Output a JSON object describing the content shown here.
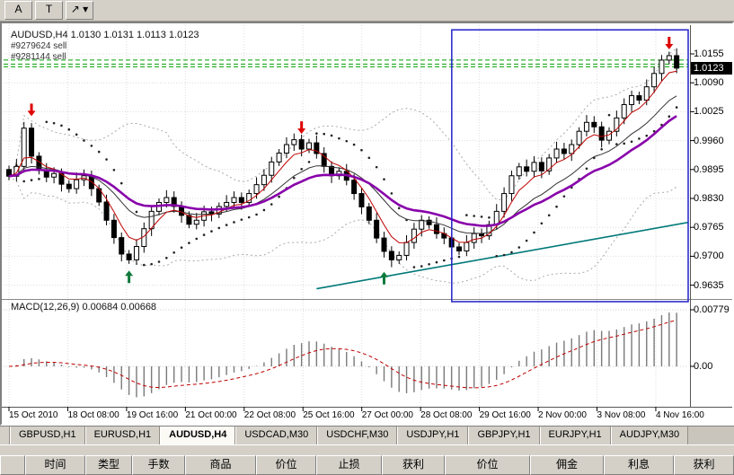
{
  "toolbar": {
    "buttons": [
      {
        "name": "cursor-tool-button",
        "label": "A"
      },
      {
        "name": "text-tool-button",
        "label": "T"
      },
      {
        "name": "line-studies-dropdown-button",
        "label": "↗ ▾"
      }
    ]
  },
  "chart": {
    "title": "AUDUSD,H4 1.0130 1.0131 1.0113 1.0123",
    "orders": [
      "#9279624 sell",
      "#9281144 sell"
    ],
    "order_line_prices": [
      1.0141,
      1.0132,
      1.0126
    ],
    "price_axis": {
      "labels": [
        "1.0155",
        "1.0090",
        "1.0025",
        "0.9960",
        "0.9895",
        "0.9830",
        "0.9765",
        "0.9700",
        "0.9635"
      ],
      "current": "1.0123"
    },
    "selection_rect": {
      "from_index": 59.5,
      "to_index": 91,
      "top_price": 1.0209,
      "bottom_price": 0.9598,
      "color": "#2121c8"
    },
    "trendline": {
      "from_index": 41,
      "from_price": 0.9627,
      "to_index": 90.5,
      "to_price": 0.9776,
      "color": "#007878"
    },
    "arrows": [
      {
        "index": 3,
        "price": 1.0015,
        "dir": "down"
      },
      {
        "index": 39,
        "price": 0.9975,
        "dir": "down"
      },
      {
        "index": 88,
        "price": 1.0165,
        "dir": "down"
      },
      {
        "index": 16,
        "price": 0.9668,
        "dir": "up"
      },
      {
        "index": 50,
        "price": 0.9665,
        "dir": "up"
      }
    ],
    "colors": {
      "bull": "#ffffff",
      "bear": "#000000",
      "ma_fast": "#c00000",
      "ma_mid": "#333333",
      "ma_slow": "#8800aa",
      "bands": "#aaaaaa",
      "sar": "#222222",
      "arrow_down": "#dd0000",
      "arrow_up": "#0e7a3c",
      "order_line": "#00a000",
      "macd_bar": "#7a7a7a",
      "macd_signal": "#c00000"
    },
    "candles": {
      "first_open": 0.9895,
      "closes": [
        0.988,
        0.9902,
        0.9988,
        0.9925,
        0.9893,
        0.9878,
        0.9886,
        0.9862,
        0.9852,
        0.9872,
        0.9881,
        0.9852,
        0.9822,
        0.9781,
        0.9742,
        0.9705,
        0.9692,
        0.9722,
        0.9762,
        0.9801,
        0.9821,
        0.9832,
        0.9812,
        0.9792,
        0.9772,
        0.9781,
        0.98,
        0.9795,
        0.9812,
        0.9821,
        0.9832,
        0.9821,
        0.9841,
        0.9861,
        0.9882,
        0.9912,
        0.9932,
        0.9951,
        0.9962,
        0.9941,
        0.9955,
        0.9931,
        0.9902,
        0.9881,
        0.9891,
        0.9871,
        0.9841,
        0.9811,
        0.9781,
        0.9741,
        0.9711,
        0.9692,
        0.9702,
        0.9731,
        0.9761,
        0.9781,
        0.9771,
        0.9751,
        0.9741,
        0.9721,
        0.9712,
        0.9731,
        0.9751,
        0.9746,
        0.9771,
        0.9801,
        0.9841,
        0.9881,
        0.9901,
        0.9891,
        0.9911,
        0.9892,
        0.9921,
        0.9941,
        0.9931,
        0.9951,
        0.9981,
        1.0001,
        0.9991,
        0.9961,
        0.9981,
        1.0011,
        1.0041,
        1.0061,
        1.0051,
        1.0081,
        1.0111,
        1.0141,
        1.0151,
        1.0123
      ]
    }
  },
  "macd": {
    "label": "MACD(12,26,9) 0.00684 0.00668",
    "axis_labels": [
      "0.00779",
      "0.00"
    ],
    "axis_values": [
      0.00779,
      0
    ]
  },
  "time_axis": {
    "labels": [
      "15 Oct 2010",
      "18 Oct 08:00",
      "19 Oct 16:00",
      "21 Oct 00:00",
      "22 Oct 08:00",
      "25 Oct 16:00",
      "27 Oct 00:00",
      "28 Oct 08:00",
      "29 Oct 16:00",
      "2 Nov 00:00",
      "3 Nov 08:00",
      "4 Nov 16:00"
    ]
  },
  "tabs": {
    "items": [
      {
        "label": "GBPUSD,H1",
        "active": false
      },
      {
        "label": "EURUSD,H1",
        "active": false
      },
      {
        "label": "AUDUSD,H4",
        "active": true
      },
      {
        "label": "USDCAD,M30",
        "active": false
      },
      {
        "label": "USDCHF,M30",
        "active": false
      },
      {
        "label": "USDJPY,H1",
        "active": false
      },
      {
        "label": "GBPJPY,H1",
        "active": false
      },
      {
        "label": "EURJPY,H1",
        "active": false
      },
      {
        "label": "AUDJPY,M30",
        "active": false
      }
    ]
  },
  "terminal": {
    "headers": [
      "时间",
      "类型",
      "手数",
      "商品",
      "价位",
      "止损",
      "获利",
      "价位",
      "佣金",
      "利息",
      "获利"
    ]
  }
}
